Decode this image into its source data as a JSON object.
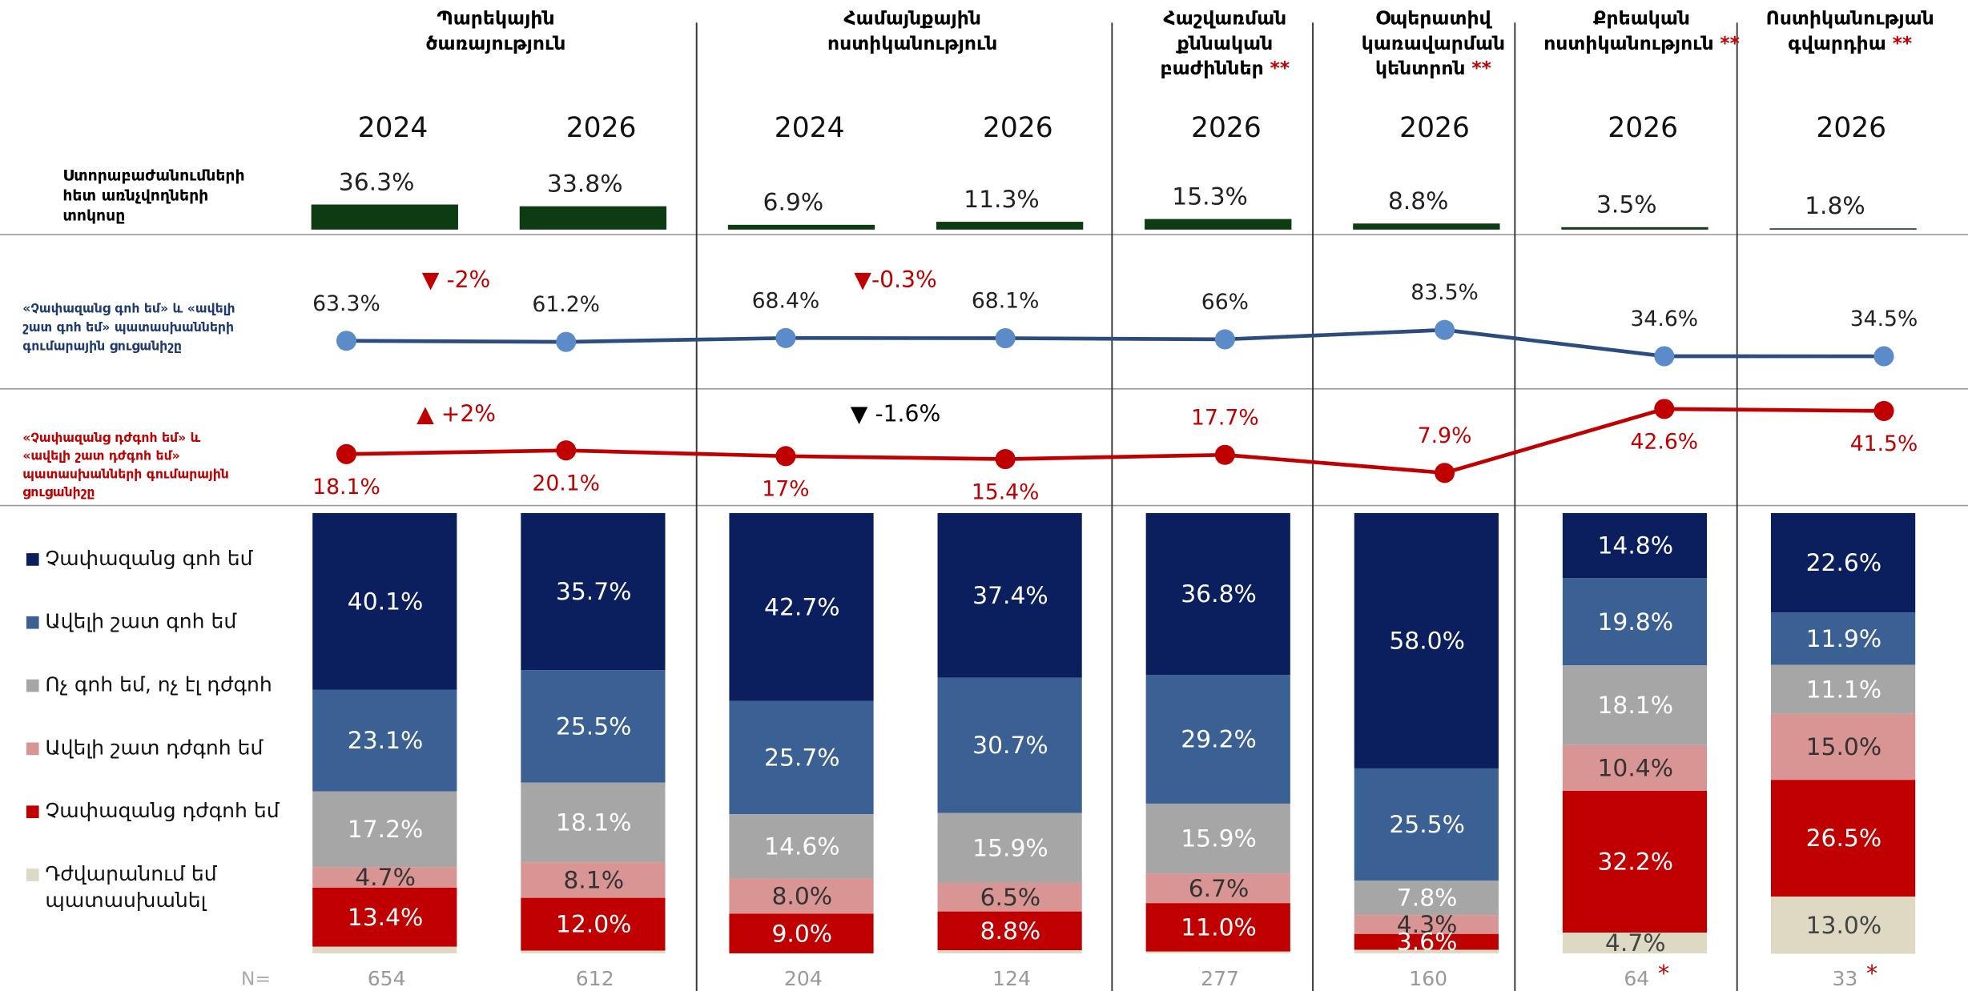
{
  "groups": [
    {
      "name": "Պարեկային\nծառայություն",
      "years": [
        "2024",
        "2026"
      ]
    },
    {
      "name": "Համայնքային\nոստիկանություն",
      "years": [
        "2024",
        "2026"
      ]
    },
    {
      "name": "Հաշվառման\nքննական\nբաժիններ",
      "note": "**",
      "years": [
        "2026"
      ]
    },
    {
      "name": "Օպերատիվ\nկառավարման\nկենտրոն",
      "note": "**",
      "years": [
        "2026"
      ]
    },
    {
      "name": "Քրեական\nոստիկանություն",
      "note": "**",
      "years": [
        "2026"
      ]
    },
    {
      "name": "Ոստիկանության\nգվարդիա",
      "note": "**",
      "years": [
        "2026"
      ]
    }
  ],
  "chart_data": [
    {
      "type": "bar",
      "title": "Ստորաբաժանումների\nհետ առնչվողների\nտոկոսը",
      "color": "#0d3b12",
      "values": [
        36.3,
        33.8,
        6.9,
        11.3,
        15.3,
        8.8,
        3.5,
        1.8
      ],
      "value_labels": [
        "36.3%",
        "33.8%",
        "6.9%",
        "11.3%",
        "15.3%",
        "8.8%",
        "3.5%",
        "1.8%"
      ]
    },
    {
      "type": "line",
      "title": "«Չափազանց գոհ եմ» և «ավելի\nշատ գոհ եմ» պատասխանների\nգումարային ցուցանիշը",
      "color": "#2b4c7e",
      "marker_color": "#5b8bc9",
      "title_color": "#1f3a6e",
      "values": [
        63.3,
        61.2,
        68.4,
        68.1,
        66,
        83.5,
        34.6,
        34.5
      ],
      "value_labels": [
        "63.3%",
        "61.2%",
        "68.4%",
        "68.1%",
        "66%",
        "83.5%",
        "34.6%",
        "34.5%"
      ],
      "label_color": "#222222",
      "annotations": [
        {
          "text": "▼  -2%",
          "color": "#c00000"
        },
        {
          "text": "▼-0.3%",
          "color": "#c00000"
        }
      ]
    },
    {
      "type": "line",
      "title": "«Չափազանց դժգոհ եմ» և\n«ավելի շատ դժգոհ եմ»\nպատասխանների գումարային\nցուցանիշը",
      "color": "#c00000",
      "marker_color": "#c00000",
      "title_color": "#c00000",
      "values": [
        18.1,
        20.1,
        17,
        15.4,
        17.7,
        7.9,
        42.6,
        41.5
      ],
      "value_labels": [
        "18.1%",
        "20.1%",
        "17%",
        "15.4%",
        "17.7%",
        "7.9%",
        "42.6%",
        "41.5%"
      ],
      "label_color": "#c00000",
      "annotations": [
        {
          "text": "▲ +2%",
          "color": "#c00000"
        },
        {
          "text": "▼ -1.6%",
          "color": "#000000"
        }
      ]
    },
    {
      "type": "stacked_bar",
      "series": [
        {
          "name": "Չափազանց գոհ եմ",
          "color": "#0b1f5e",
          "label_color": "#ffffff",
          "values": [
            40.1,
            35.7,
            42.7,
            37.4,
            36.8,
            58.0,
            14.8,
            22.6
          ],
          "value_labels": [
            "40.1%",
            "35.7%",
            "42.7%",
            "37.4%",
            "36.8%",
            "58.0%",
            "14.8%",
            "22.6%"
          ]
        },
        {
          "name": "Ավելի շատ գոհ եմ",
          "color": "#3a6094",
          "label_color": "#ffffff",
          "values": [
            23.1,
            25.5,
            25.7,
            30.7,
            29.2,
            25.5,
            19.8,
            11.9
          ],
          "value_labels": [
            "23.1%",
            "25.5%",
            "25.7%",
            "30.7%",
            "29.2%",
            "25.5%",
            "19.8%",
            "11.9%"
          ]
        },
        {
          "name": "Ոչ գոհ եմ, ոչ էլ դժգոհ",
          "color": "#a6a6a6",
          "label_color": "#ffffff",
          "values": [
            17.2,
            18.1,
            14.6,
            15.9,
            15.9,
            7.8,
            18.1,
            11.1
          ],
          "value_labels": [
            "17.2%",
            "18.1%",
            "14.6%",
            "15.9%",
            "15.9%",
            "7.8%",
            "18.1%",
            "11.1%"
          ]
        },
        {
          "name": "Ավելի շատ դժգոհ եմ",
          "color": "#d99594",
          "label_color": "#333333",
          "values": [
            4.7,
            8.1,
            8.0,
            6.5,
            6.7,
            4.3,
            10.4,
            15.0
          ],
          "value_labels": [
            "4.7%",
            "8.1%",
            "8.0%",
            "6.5%",
            "6.7%",
            "4.3%",
            "10.4%",
            "15.0%"
          ]
        },
        {
          "name": "Չափազանց դժգոհ եմ",
          "color": "#c00000",
          "label_color": "#ffffff",
          "values": [
            13.4,
            12.0,
            9.0,
            8.8,
            11.0,
            3.6,
            32.2,
            26.5
          ],
          "value_labels": [
            "13.4%",
            "12.0%",
            "9.0%",
            "8.8%",
            "11.0%",
            "3.6%",
            "32.2%",
            "26.5%"
          ]
        },
        {
          "name": "Դժվարանում եմ\nպատասխանել",
          "color": "#ddd9c3",
          "label_color": "#444444",
          "values": [
            1.5,
            0.6,
            0,
            0.7,
            0.4,
            0.8,
            4.7,
            13.0
          ],
          "value_labels": [
            null,
            null,
            null,
            null,
            null,
            null,
            "4.7%",
            "13.0%"
          ]
        }
      ]
    }
  ],
  "sample": {
    "label": "N=",
    "values": [
      654,
      612,
      204,
      124,
      277,
      160,
      64,
      33
    ],
    "notes": [
      null,
      null,
      null,
      null,
      null,
      null,
      "*",
      "*"
    ]
  }
}
